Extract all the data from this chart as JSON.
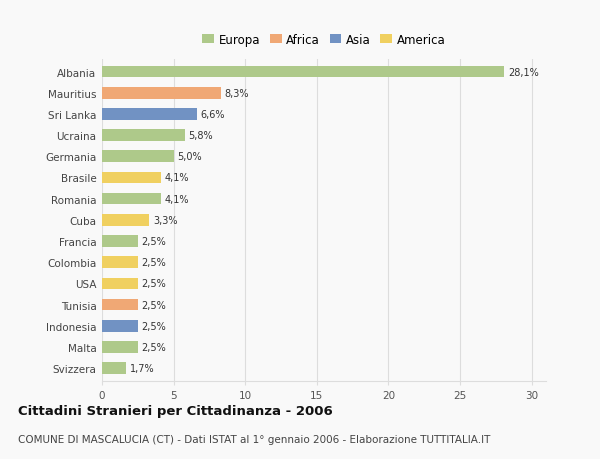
{
  "countries": [
    "Albania",
    "Mauritius",
    "Sri Lanka",
    "Ucraina",
    "Germania",
    "Brasile",
    "Romania",
    "Cuba",
    "Francia",
    "Colombia",
    "USA",
    "Tunisia",
    "Indonesia",
    "Malta",
    "Svizzera"
  ],
  "values": [
    28.1,
    8.3,
    6.6,
    5.8,
    5.0,
    4.1,
    4.1,
    3.3,
    2.5,
    2.5,
    2.5,
    2.5,
    2.5,
    2.5,
    1.7
  ],
  "continents": [
    "Europa",
    "Africa",
    "Asia",
    "Europa",
    "Europa",
    "America",
    "Europa",
    "America",
    "Europa",
    "America",
    "America",
    "Africa",
    "Asia",
    "Europa",
    "Europa"
  ],
  "labels": [
    "28,1%",
    "8,3%",
    "6,6%",
    "5,8%",
    "5,0%",
    "4,1%",
    "4,1%",
    "3,3%",
    "2,5%",
    "2,5%",
    "2,5%",
    "2,5%",
    "2,5%",
    "2,5%",
    "1,7%"
  ],
  "colors": {
    "Europa": "#aec98a",
    "Africa": "#f0a875",
    "Asia": "#7192c3",
    "America": "#f0d060"
  },
  "legend_order": [
    "Europa",
    "Africa",
    "Asia",
    "America"
  ],
  "title": "Cittadini Stranieri per Cittadinanza - 2006",
  "subtitle": "COMUNE DI MASCALUCIA (CT) - Dati ISTAT al 1° gennaio 2006 - Elaborazione TUTTITALIA.IT",
  "xlim": [
    0,
    31
  ],
  "xticks": [
    0,
    5,
    10,
    15,
    20,
    25,
    30
  ],
  "background_color": "#f9f9f9",
  "grid_color": "#dddddd",
  "bar_height": 0.55,
  "title_fontsize": 9.5,
  "subtitle_fontsize": 7.5,
  "label_fontsize": 7,
  "tick_fontsize": 7.5,
  "legend_fontsize": 8.5
}
